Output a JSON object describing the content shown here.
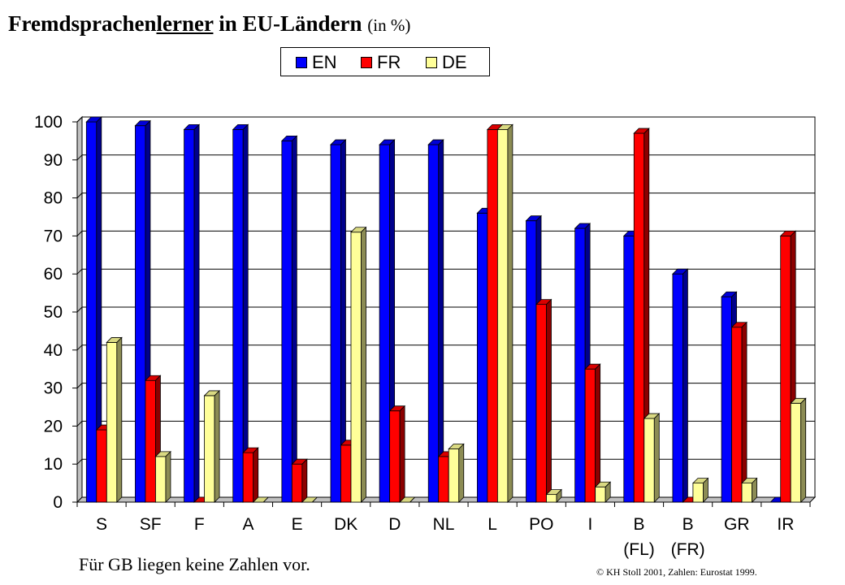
{
  "title": {
    "part1": "Fremdsprachen",
    "part2": "lerner",
    "part3": " in EU-Ländern ",
    "unit": "(in %)"
  },
  "note": "Für GB liegen keine Zahlen vor.",
  "credit": "© KH Stoll 2001, Zahlen: Eurostat 1999.",
  "chart_data": {
    "type": "bar",
    "categories": [
      "S",
      "SF",
      "F",
      "A",
      "E",
      "DK",
      "D",
      "NL",
      "L",
      "PO",
      "I",
      "B",
      "B",
      "GR",
      "IR"
    ],
    "category_sublabels": [
      "",
      "",
      "",
      "",
      "",
      "",
      "",
      "",
      "",
      "",
      "",
      "(FL)",
      "(FR)",
      "",
      ""
    ],
    "series": [
      {
        "name": "EN",
        "color": "#0000ff",
        "values": [
          100,
          99,
          98,
          98,
          95,
          94,
          94,
          94,
          76,
          74,
          72,
          70,
          60,
          54,
          0
        ]
      },
      {
        "name": "FR",
        "color": "#ff0000",
        "values": [
          19,
          32,
          0,
          13,
          10,
          15,
          24,
          12,
          98,
          52,
          35,
          97,
          0,
          46,
          70
        ]
      },
      {
        "name": "DE",
        "color": "#ffff99",
        "values": [
          42,
          12,
          28,
          0,
          0,
          71,
          0,
          14,
          98,
          2,
          4,
          22,
          5,
          5,
          26
        ]
      }
    ],
    "ylim": [
      0,
      100
    ],
    "yticks": [
      0,
      10,
      20,
      30,
      40,
      50,
      60,
      70,
      80,
      90,
      100
    ],
    "grid": true,
    "legend_position": "top-center",
    "style": "3d-bars"
  }
}
